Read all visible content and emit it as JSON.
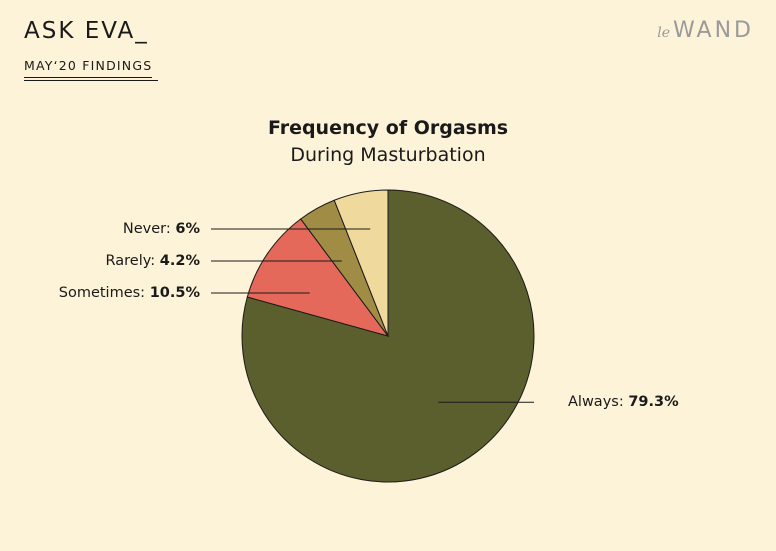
{
  "header": {
    "title": "ASK EVA_",
    "subtitle": "MAY‘20 FINDINGS",
    "logo_prefix": "le",
    "logo_main": "WAND"
  },
  "colors": {
    "background": "#fdf3d8",
    "always": "#5b5e2d",
    "sometimes": "#e4695a",
    "rarely": "#a08c45",
    "never": "#f0d99c"
  },
  "chart_data": {
    "type": "pie",
    "title": "Frequency of Orgasms",
    "subtitle": "During Masturbation",
    "slices": [
      {
        "label": "Always",
        "value": 79.3,
        "display": "79.3%",
        "color": "#5b5e2d",
        "side": "right"
      },
      {
        "label": "Sometimes",
        "value": 10.5,
        "display": "10.5%",
        "color": "#e4695a",
        "side": "left"
      },
      {
        "label": "Rarely",
        "value": 4.2,
        "display": "4.2%",
        "color": "#a08c45",
        "side": "left"
      },
      {
        "label": "Never",
        "value": 6,
        "display": "6%",
        "color": "#f0d99c",
        "side": "left"
      }
    ]
  }
}
